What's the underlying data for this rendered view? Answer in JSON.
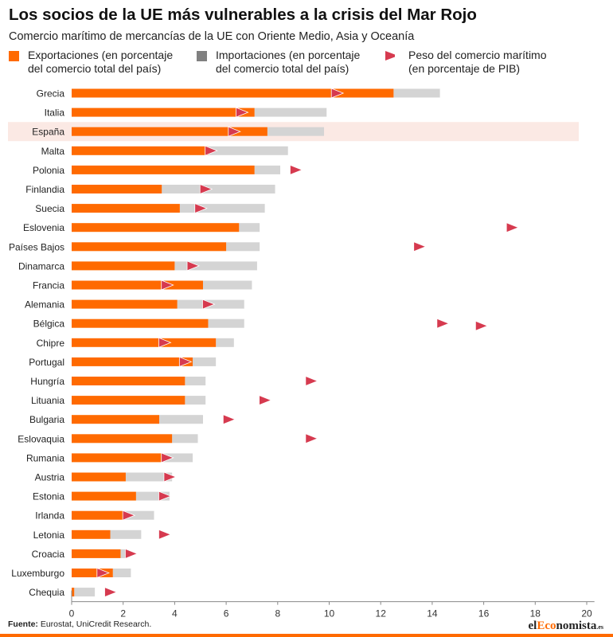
{
  "header": {
    "title": "Los socios de la UE más vulnerables a la crisis del Mar Rojo",
    "subtitle": "Comercio marítimo de mercancías de la UE con Oriente Medio, Asia y Oceanía"
  },
  "legend": {
    "exports_line1": "Exportaciones (en porcentaje",
    "exports_line2": "del comercio total del país)",
    "imports_line1": "Importaciones (en porcentaje",
    "imports_line2": "del comercio total del país)",
    "marker_line1": "Peso del comercio marítimo",
    "marker_line2": "(en porcentaje de PIB)"
  },
  "colors": {
    "exports": "#ff6a00",
    "imports": "#d4d4d4",
    "imports_legend": "#808080",
    "marker": "#d63a4f",
    "highlight_row": "#fbe9e4"
  },
  "chart_data": {
    "type": "bar",
    "orientation": "horizontal",
    "stacked": true,
    "highlighted_category": "España",
    "categories": [
      "Grecia",
      "Italia",
      "España",
      "Malta",
      "Polonia",
      "Finlandia",
      "Suecia",
      "Eslovenia",
      "Países Bajos",
      "Dinamarca",
      "Francia",
      "Alemania",
      "Bélgica",
      "Chipre",
      "Portugal",
      "Hungría",
      "Lituania",
      "Bulgaria",
      "Eslovaquia",
      "Rumania",
      "Austria",
      "Estonia",
      "Irlanda",
      "Letonia",
      "Croacia",
      "Luxemburgo",
      "Chequia"
    ],
    "series": [
      {
        "name": "Exportaciones (en porcentaje del comercio total del país)",
        "values": [
          12.5,
          7.1,
          7.6,
          5.3,
          7.1,
          3.5,
          4.2,
          6.5,
          6.0,
          4.0,
          5.1,
          4.1,
          5.3,
          5.6,
          4.7,
          4.4,
          4.4,
          3.4,
          3.9,
          3.5,
          2.1,
          2.5,
          2.0,
          1.5,
          1.9,
          1.6,
          0.1
        ]
      },
      {
        "name": "Importaciones (en porcentaje del comercio total del país)",
        "values": [
          1.8,
          2.8,
          2.2,
          3.1,
          1.0,
          4.4,
          3.3,
          0.8,
          1.3,
          3.2,
          1.9,
          2.6,
          1.4,
          0.7,
          0.9,
          0.8,
          0.8,
          1.7,
          1.0,
          1.2,
          1.8,
          1.3,
          1.2,
          1.2,
          0.2,
          0.7,
          0.8
        ]
      },
      {
        "name": "Peso del comercio marítimo (en porcentaje de PIB)",
        "type": "marker",
        "values": [
          10.3,
          6.6,
          6.3,
          5.4,
          8.7,
          5.2,
          5.0,
          17.1,
          13.5,
          4.7,
          3.7,
          5.3,
          14.4,
          3.6,
          4.4,
          9.3,
          7.5,
          6.1,
          9.3,
          3.7,
          3.8,
          3.6,
          2.2,
          3.6,
          2.3,
          1.2,
          1.5
        ],
        "extra_markers": [
          {
            "category": "Bélgica",
            "value": 15.9
          }
        ]
      }
    ],
    "x_ticks": [
      "0",
      "2",
      "4",
      "6",
      "8",
      "10",
      "12",
      "14",
      "16",
      "18",
      "20"
    ],
    "xlim": [
      0,
      20.5
    ],
    "grid": false
  },
  "footer": {
    "source_label": "Fuente:",
    "source_text": " Eurostat, UniCredit Research.",
    "logo_prefix": "el",
    "logo_accent": "Eco",
    "logo_suffix": "nomista",
    "logo_tld": ".es"
  }
}
